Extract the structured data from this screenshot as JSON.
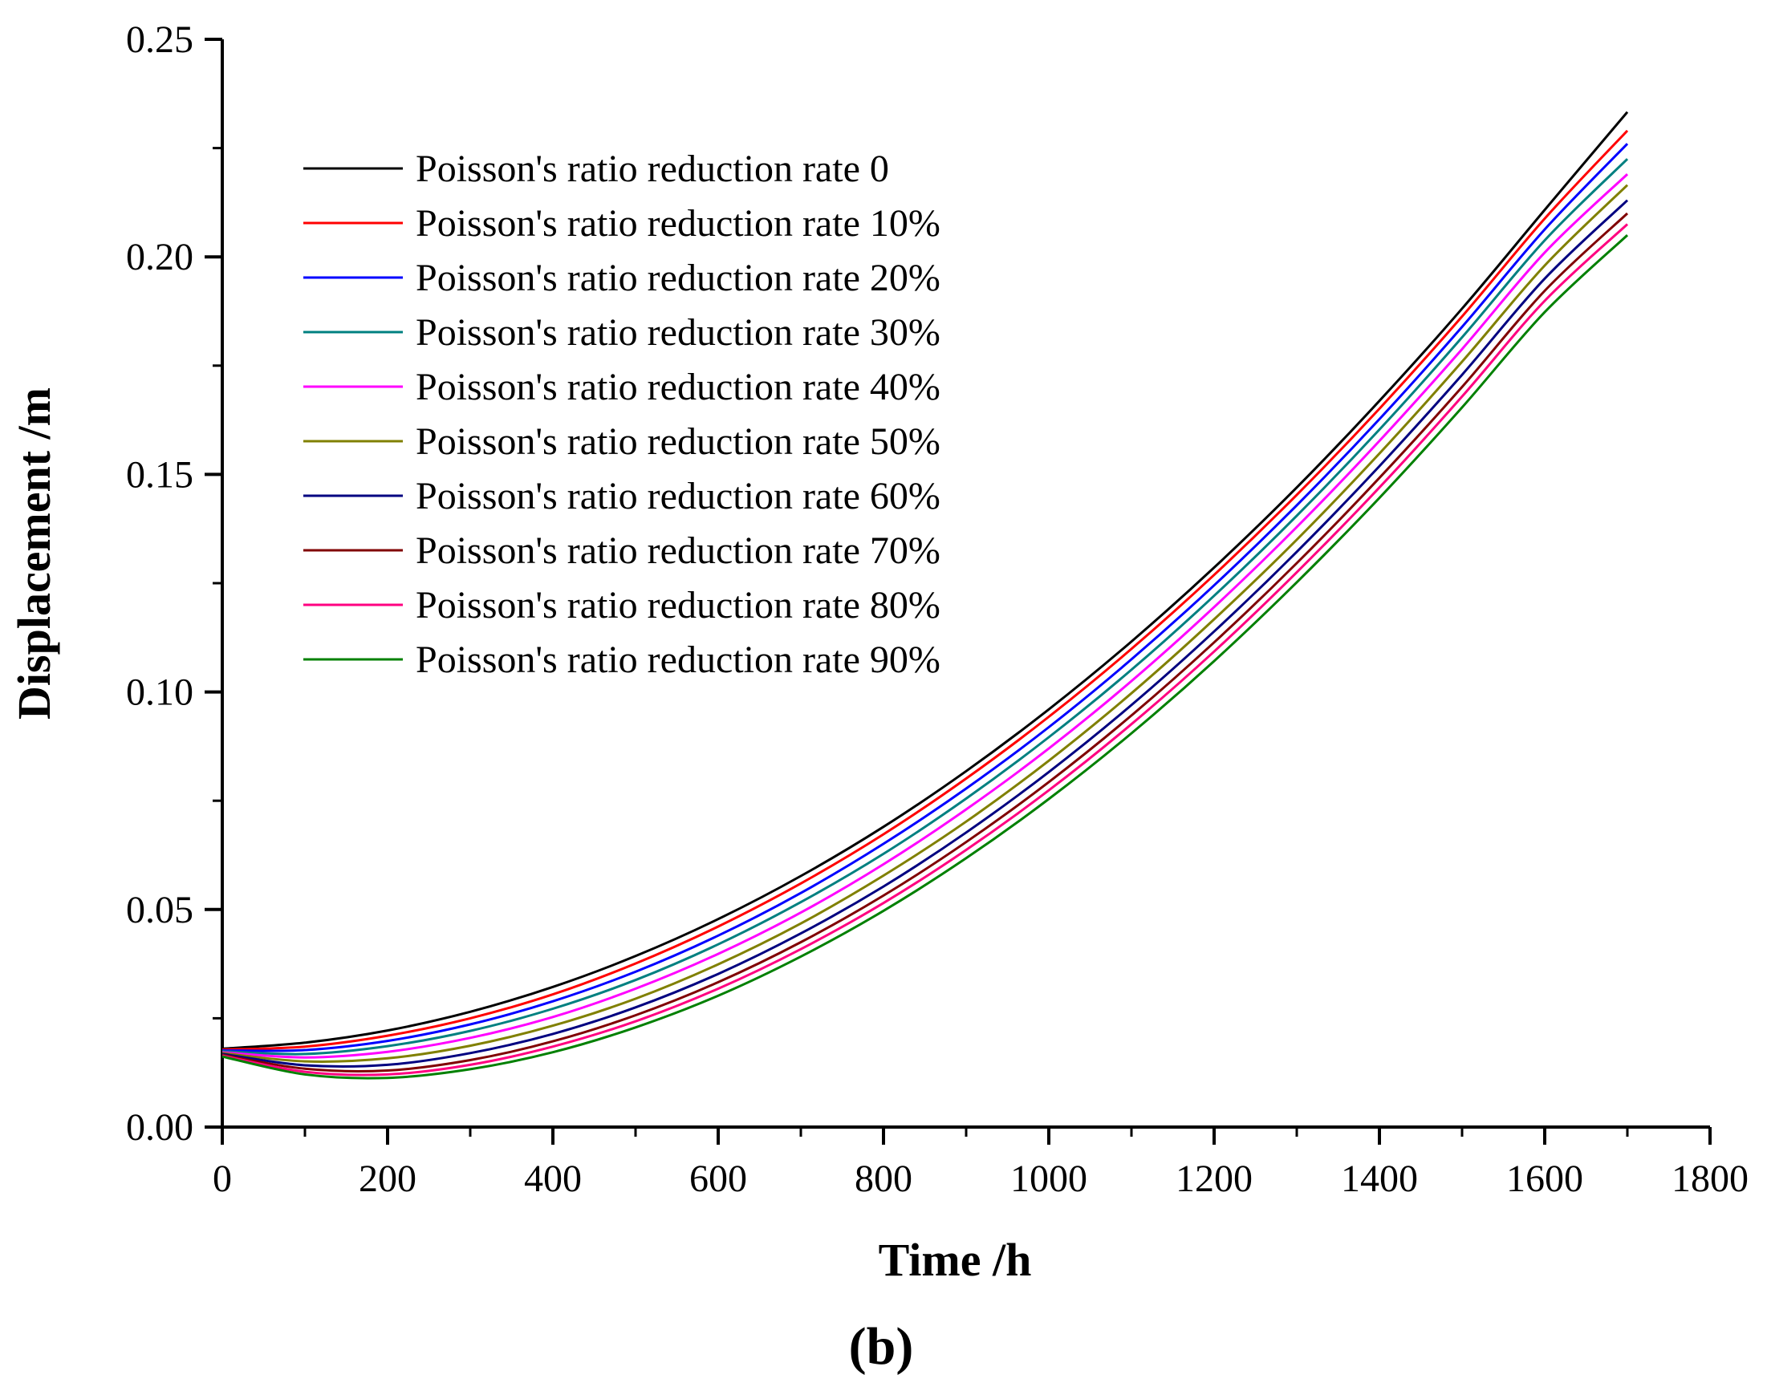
{
  "chart_data": {
    "type": "line",
    "title": "",
    "panel_label": "(b)",
    "xlabel": "Time /h",
    "ylabel": "Displacement /m",
    "xlim": [
      0,
      1800
    ],
    "ylim": [
      0,
      0.25
    ],
    "xticks": [
      0,
      200,
      400,
      600,
      800,
      1000,
      1200,
      1400,
      1600,
      1800
    ],
    "xtick_labels": [
      "0",
      "200",
      "400",
      "600",
      "800",
      "1000",
      "1200",
      "1400",
      "1600",
      "1800"
    ],
    "yticks": [
      0,
      0.05,
      0.1,
      0.15,
      0.2,
      0.25
    ],
    "ytick_labels": [
      "0.00",
      "0.05",
      "0.10",
      "0.15",
      "0.20",
      "0.25"
    ],
    "grid": false,
    "legend_position": "top-left",
    "x": [
      0,
      100,
      200,
      300,
      400,
      500,
      600,
      700,
      800,
      900,
      1000,
      1100,
      1200,
      1300,
      1400,
      1500,
      1600,
      1700
    ],
    "series": [
      {
        "name": "Poisson's ratio reduction rate 0",
        "color": "#000000",
        "values": [
          0.018,
          0.0194,
          0.0222,
          0.0265,
          0.0322,
          0.0393,
          0.0478,
          0.0577,
          0.069,
          0.0818,
          0.096,
          0.1116,
          0.1286,
          0.147,
          0.1669,
          0.1881,
          0.2108,
          0.2333
        ]
      },
      {
        "name": "Poisson's ratio reduction rate 10%",
        "color": "#ff0000",
        "values": [
          0.0178,
          0.0185,
          0.021,
          0.025,
          0.0305,
          0.0376,
          0.0461,
          0.056,
          0.0673,
          0.0801,
          0.0943,
          0.1099,
          0.1269,
          0.1453,
          0.1651,
          0.1863,
          0.2088,
          0.229
        ]
      },
      {
        "name": "Poisson's ratio reduction rate 20%",
        "color": "#0000ff",
        "values": [
          0.0176,
          0.0177,
          0.0198,
          0.0236,
          0.0289,
          0.0357,
          0.044,
          0.0538,
          0.0651,
          0.0778,
          0.0919,
          0.1075,
          0.1245,
          0.1429,
          0.1627,
          0.1839,
          0.2063,
          0.226
        ]
      },
      {
        "name": "Poisson's ratio reduction rate 30%",
        "color": "#008080",
        "values": [
          0.0174,
          0.0168,
          0.0186,
          0.0221,
          0.0272,
          0.0338,
          0.042,
          0.0517,
          0.0628,
          0.0755,
          0.0896,
          0.1051,
          0.1221,
          0.1405,
          0.1603,
          0.1815,
          0.2038,
          0.2225
        ]
      },
      {
        "name": "Poisson's ratio reduction rate 40%",
        "color": "#ff00ff",
        "values": [
          0.0172,
          0.016,
          0.0173,
          0.0205,
          0.0253,
          0.0318,
          0.0398,
          0.0493,
          0.0604,
          0.073,
          0.087,
          0.1025,
          0.1195,
          0.1379,
          0.1577,
          0.1788,
          0.201,
          0.219
        ]
      },
      {
        "name": "Poisson's ratio reduction rate 50%",
        "color": "#808000",
        "values": [
          0.017,
          0.0151,
          0.0158,
          0.0187,
          0.0233,
          0.0295,
          0.0374,
          0.0468,
          0.0578,
          0.0702,
          0.0842,
          0.0997,
          0.1167,
          0.135,
          0.1548,
          0.1759,
          0.198,
          0.2165
        ]
      },
      {
        "name": "Poisson's ratio reduction rate 60%",
        "color": "#000080",
        "values": [
          0.0168,
          0.0142,
          0.0143,
          0.017,
          0.0214,
          0.0275,
          0.0352,
          0.0445,
          0.0553,
          0.0677,
          0.0816,
          0.097,
          0.1139,
          0.1322,
          0.1519,
          0.1729,
          0.195,
          0.213
        ]
      },
      {
        "name": "Poisson's ratio reduction rate 70%",
        "color": "#800000",
        "values": [
          0.0166,
          0.0134,
          0.013,
          0.0154,
          0.0197,
          0.0257,
          0.0333,
          0.0425,
          0.0532,
          0.0655,
          0.0793,
          0.0946,
          0.1114,
          0.1296,
          0.1492,
          0.1701,
          0.1922,
          0.21
        ]
      },
      {
        "name": "Poisson's ratio reduction rate 80%",
        "color": "#ff0080",
        "values": [
          0.0164,
          0.0127,
          0.0121,
          0.0143,
          0.0185,
          0.0243,
          0.0318,
          0.0409,
          0.0515,
          0.0637,
          0.0774,
          0.0926,
          0.1093,
          0.1275,
          0.147,
          0.1679,
          0.1899,
          0.2075
        ]
      },
      {
        "name": "Poisson's ratio reduction rate 90%",
        "color": "#008000",
        "values": [
          0.0162,
          0.0121,
          0.0113,
          0.0133,
          0.0172,
          0.0229,
          0.0302,
          0.0392,
          0.0497,
          0.0618,
          0.0754,
          0.0905,
          0.1071,
          0.1252,
          0.1446,
          0.1654,
          0.1873,
          0.205
        ]
      }
    ]
  }
}
